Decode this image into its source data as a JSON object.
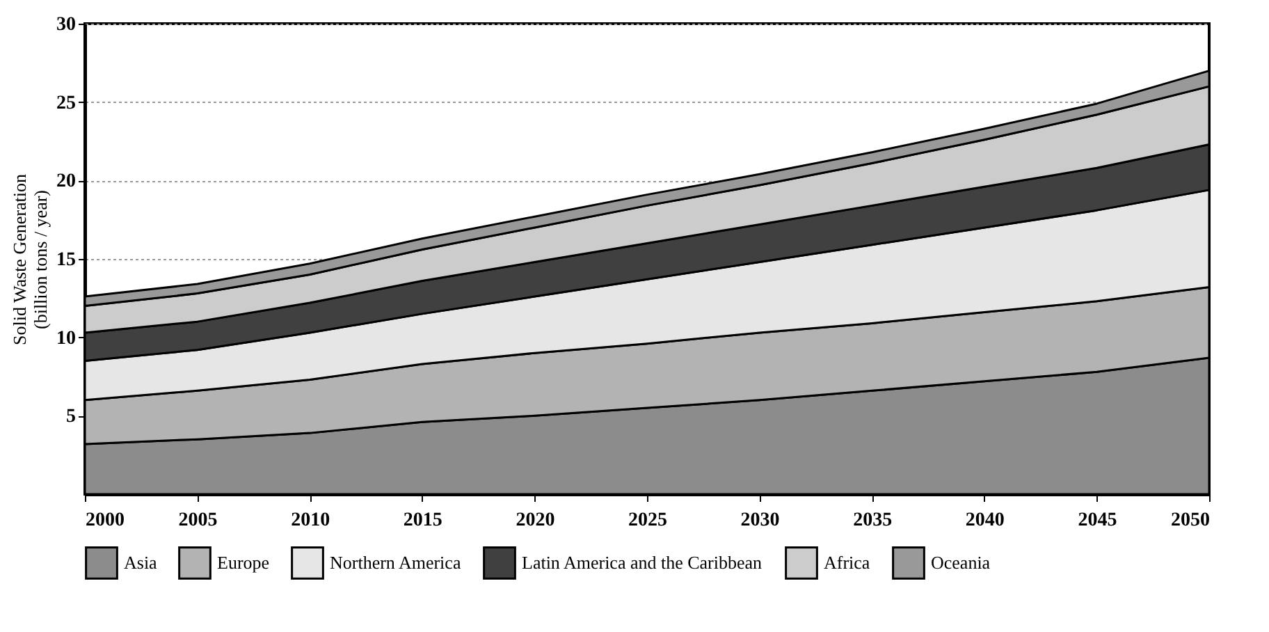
{
  "chart_data": {
    "type": "area",
    "stacked": true,
    "ylabel": "Solid Waste Generation\n(billion tons / year)",
    "x": [
      2000,
      2005,
      2010,
      2015,
      2020,
      2025,
      2030,
      2035,
      2040,
      2045,
      2050
    ],
    "series": [
      {
        "name": "Asia",
        "color": "#8c8c8c",
        "values": [
          3.2,
          3.5,
          3.9,
          4.6,
          5.0,
          5.5,
          6.0,
          6.6,
          7.2,
          7.8,
          8.7
        ]
      },
      {
        "name": "Europe",
        "color": "#b3b3b3",
        "values": [
          2.8,
          3.1,
          3.4,
          3.7,
          4.0,
          4.1,
          4.3,
          4.3,
          4.4,
          4.5,
          4.5
        ]
      },
      {
        "name": "Northern America",
        "color": "#e6e6e6",
        "values": [
          2.5,
          2.6,
          3.0,
          3.2,
          3.6,
          4.1,
          4.5,
          5.0,
          5.4,
          5.8,
          6.2
        ]
      },
      {
        "name": "Latin America and the Caribbean",
        "color": "#404040",
        "values": [
          1.8,
          1.8,
          1.9,
          2.1,
          2.2,
          2.3,
          2.4,
          2.5,
          2.6,
          2.7,
          2.9
        ]
      },
      {
        "name": "Africa",
        "color": "#cccccc",
        "values": [
          1.7,
          1.8,
          1.8,
          2.0,
          2.2,
          2.4,
          2.5,
          2.7,
          3.0,
          3.4,
          3.7
        ]
      },
      {
        "name": "Oceania",
        "color": "#999999",
        "values": [
          0.6,
          0.6,
          0.7,
          0.7,
          0.7,
          0.7,
          0.7,
          0.7,
          0.7,
          0.7,
          1.0
        ]
      }
    ],
    "xlim": [
      2000,
      2050
    ],
    "xticks": [
      2000,
      2005,
      2010,
      2015,
      2020,
      2025,
      2030,
      2035,
      2040,
      2045,
      2050
    ],
    "ylim": [
      0,
      30
    ],
    "yticks": [
      5,
      10,
      15,
      20,
      25,
      30
    ],
    "grid": "y",
    "legend": "bottom"
  }
}
